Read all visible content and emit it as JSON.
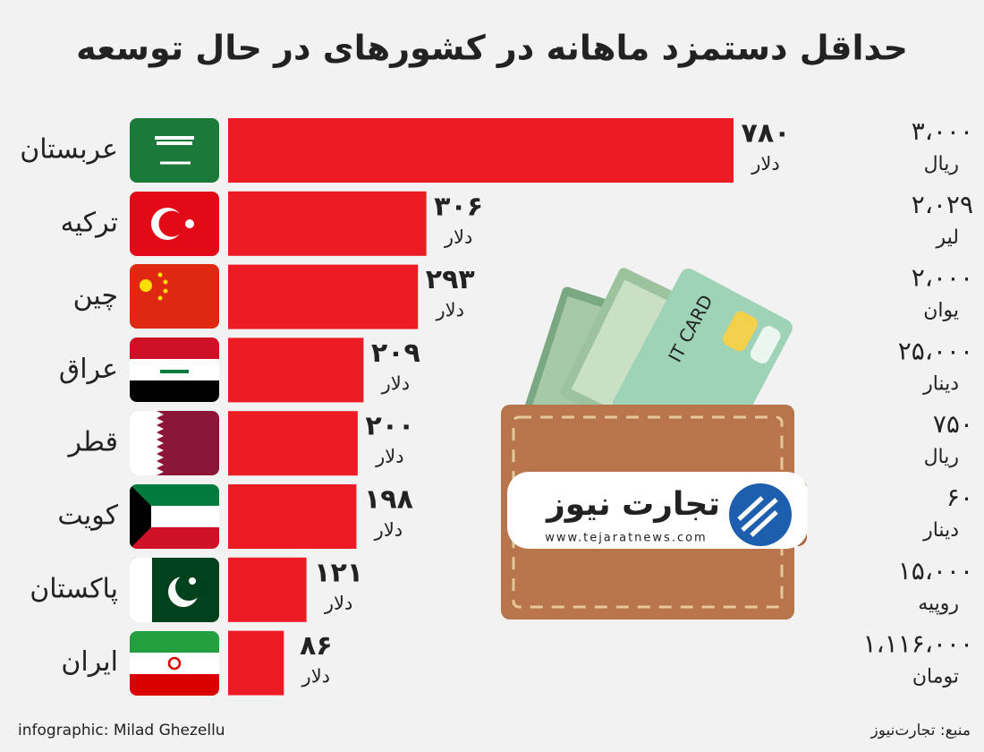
{
  "chart_data": {
    "type": "bar",
    "orientation": "horizontal",
    "title": "حداقل دستمزد ماهانه در کشورهای در حال توسعه",
    "categories": [
      "عربستان",
      "ترکیه",
      "چین",
      "عراق",
      "قطر",
      "کویت",
      "پاکستان",
      "ایران"
    ],
    "values": [
      780,
      306,
      293,
      209,
      200,
      198,
      121,
      86
    ],
    "value_labels": [
      "۷۸۰",
      "۳۰۶",
      "۲۹۳",
      "۲۰۹",
      "۲۰۰",
      "۱۹۸",
      "۱۲۱",
      "۸۶"
    ],
    "unit": "دلار",
    "color": "#ed1c24",
    "local_wages": [
      {
        "amount": "۳،۰۰۰",
        "currency": "ریال"
      },
      {
        "amount": "۲،۰۲۹",
        "currency": "لیر"
      },
      {
        "amount": "۲،۰۰۰",
        "currency": "یوان"
      },
      {
        "amount": "۲۵،۰۰۰",
        "currency": "دینار"
      },
      {
        "amount": "۷۵۰",
        "currency": "ریال"
      },
      {
        "amount": "۶۰",
        "currency": "دینار"
      },
      {
        "amount": "۱۵،۰۰۰",
        "currency": "روپیه"
      },
      {
        "amount": "۱،۱۱۶،۰۰۰",
        "currency": "تومان"
      }
    ]
  },
  "logo": {
    "name": "تجارت نیوز",
    "url": "www.tejaratnews.com"
  },
  "illustration": {
    "card_text": "IT CARD"
  },
  "footer": {
    "credit": "infographic: Milad Ghezellu",
    "source": "منبع: تجارت‌نیوز"
  }
}
